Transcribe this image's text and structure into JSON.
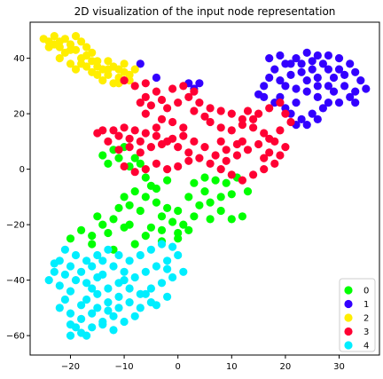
{
  "chart_data": {
    "type": "scatter",
    "title": "2D visualization of the input node representation",
    "xlabel": "",
    "ylabel": "",
    "xlim": [
      -27.5,
      37.5
    ],
    "ylim": [
      -67,
      53
    ],
    "x_ticks": [
      -20,
      -10,
      0,
      10,
      20,
      30
    ],
    "y_ticks": [
      -60,
      -40,
      -20,
      0,
      20,
      40
    ],
    "x_tick_labels": [
      "−20",
      "−10",
      "0",
      "10",
      "20",
      "30"
    ],
    "y_tick_labels": [
      "−60",
      "−40",
      "−20",
      "0",
      "20",
      "40"
    ],
    "grid": false,
    "legend_position": "bottom-right",
    "series": [
      {
        "name": "0",
        "color": "#00ff00",
        "points": [
          [
            -14,
            5
          ],
          [
            -12,
            7
          ],
          [
            -10,
            8
          ],
          [
            -11,
            4
          ],
          [
            -13,
            2
          ],
          [
            -8,
            4
          ],
          [
            -9,
            1
          ],
          [
            -7,
            2
          ],
          [
            -6,
            -3
          ],
          [
            -8,
            -8
          ],
          [
            -10,
            -10
          ],
          [
            -6,
            -10
          ],
          [
            -4,
            -12
          ],
          [
            -2,
            -14
          ],
          [
            0,
            -15
          ],
          [
            -9,
            -13
          ],
          [
            -7,
            -15
          ],
          [
            -3,
            -17
          ],
          [
            -1,
            -19
          ],
          [
            1,
            -20
          ],
          [
            2,
            -22
          ],
          [
            0,
            -23
          ],
          [
            -3,
            -22
          ],
          [
            -5,
            -21
          ],
          [
            -9,
            -20
          ],
          [
            -12,
            -18
          ],
          [
            -15,
            -17
          ],
          [
            -18,
            -22
          ],
          [
            -20,
            -25
          ],
          [
            -16,
            -24
          ],
          [
            -13,
            -23
          ],
          [
            -10,
            -21
          ],
          [
            -6,
            -24
          ],
          [
            -3,
            -26
          ],
          [
            0,
            -25
          ],
          [
            3,
            -17
          ],
          [
            4,
            -13
          ],
          [
            6,
            -12
          ],
          [
            8,
            -10
          ],
          [
            10,
            -9
          ],
          [
            9,
            -5
          ],
          [
            7,
            -4
          ],
          [
            5,
            -3
          ],
          [
            5,
            -8
          ],
          [
            8,
            -15
          ],
          [
            10,
            -18
          ],
          [
            12,
            -17
          ],
          [
            13,
            -8
          ],
          [
            11,
            -3
          ],
          [
            -11,
            -14
          ],
          [
            -4,
            -7
          ],
          [
            -2,
            -4
          ],
          [
            2,
            -10
          ],
          [
            -16,
            -27
          ],
          [
            -12,
            -29
          ],
          [
            -8,
            -27
          ],
          [
            -14,
            -20
          ],
          [
            6,
            -18
          ],
          [
            3,
            -5
          ],
          [
            -5,
            -6
          ]
        ]
      },
      {
        "name": "1",
        "color": "#3300ff",
        "points": [
          [
            20,
            38
          ],
          [
            22,
            40
          ],
          [
            24,
            42
          ],
          [
            26,
            41
          ],
          [
            27,
            38
          ],
          [
            28,
            36
          ],
          [
            25,
            36
          ],
          [
            23,
            35
          ],
          [
            21,
            34
          ],
          [
            19,
            32
          ],
          [
            20,
            30
          ],
          [
            22,
            29
          ],
          [
            24,
            28
          ],
          [
            26,
            26
          ],
          [
            28,
            24
          ],
          [
            27,
            22
          ],
          [
            25,
            20
          ],
          [
            23,
            18
          ],
          [
            21,
            20
          ],
          [
            22,
            24
          ],
          [
            24,
            32
          ],
          [
            26,
            33
          ],
          [
            30,
            40
          ],
          [
            32,
            38
          ],
          [
            33,
            35
          ],
          [
            34,
            32
          ],
          [
            35,
            29
          ],
          [
            33,
            28
          ],
          [
            31,
            30
          ],
          [
            29,
            33
          ],
          [
            30,
            36
          ],
          [
            18,
            36
          ],
          [
            17,
            33
          ],
          [
            16,
            30
          ],
          [
            15,
            27
          ],
          [
            19,
            26
          ],
          [
            20,
            22
          ],
          [
            22,
            16
          ],
          [
            24,
            16
          ],
          [
            26,
            18
          ],
          [
            28,
            30
          ],
          [
            29,
            28
          ],
          [
            32,
            26
          ],
          [
            33,
            24
          ],
          [
            30,
            24
          ],
          [
            17,
            40
          ],
          [
            19,
            41
          ],
          [
            21,
            38
          ],
          [
            23,
            38
          ],
          [
            25,
            39
          ],
          [
            28,
            41
          ],
          [
            31,
            34
          ],
          [
            -7,
            38
          ],
          [
            -4,
            33
          ],
          [
            2,
            31
          ],
          [
            3,
            29
          ],
          [
            4,
            31
          ],
          [
            16,
            26
          ],
          [
            18,
            24
          ],
          [
            26,
            30
          ]
        ]
      },
      {
        "name": "2",
        "color": "#ffee00",
        "points": [
          [
            -25,
            47
          ],
          [
            -23,
            48
          ],
          [
            -21,
            47
          ],
          [
            -19,
            48
          ],
          [
            -20,
            45
          ],
          [
            -22,
            44
          ],
          [
            -24,
            46
          ],
          [
            -18,
            46
          ],
          [
            -19,
            43
          ],
          [
            -21,
            42
          ],
          [
            -22,
            40
          ],
          [
            -20,
            38
          ],
          [
            -18,
            40
          ],
          [
            -16,
            42
          ],
          [
            -15,
            39
          ],
          [
            -17,
            37
          ],
          [
            -19,
            36
          ],
          [
            -16,
            35
          ],
          [
            -14,
            36
          ],
          [
            -12,
            37
          ],
          [
            -13,
            34
          ],
          [
            -11,
            33
          ],
          [
            -10,
            35
          ],
          [
            -9,
            32
          ],
          [
            -12,
            31
          ],
          [
            -14,
            32
          ],
          [
            -15,
            34
          ],
          [
            -10,
            38
          ],
          [
            -8,
            36
          ],
          [
            -17,
            44
          ],
          [
            -23,
            45
          ],
          [
            -20,
            43
          ],
          [
            -17,
            41
          ],
          [
            -13,
            39
          ],
          [
            -11,
            36
          ],
          [
            -22,
            46
          ],
          [
            -24,
            44
          ],
          [
            -18,
            38
          ],
          [
            -15,
            37
          ],
          [
            -13,
            36
          ],
          [
            -11,
            31
          ],
          [
            -9,
            34
          ],
          [
            -16,
            39
          ]
        ]
      },
      {
        "name": "3",
        "color": "#ff0033",
        "points": [
          [
            -10,
            32
          ],
          [
            -8,
            30
          ],
          [
            -6,
            31
          ],
          [
            -4,
            28
          ],
          [
            -3,
            25
          ],
          [
            -5,
            23
          ],
          [
            -7,
            24
          ],
          [
            -6,
            20
          ],
          [
            -3,
            18
          ],
          [
            -1,
            17
          ],
          [
            1,
            15
          ],
          [
            -2,
            22
          ],
          [
            0,
            24
          ],
          [
            2,
            26
          ],
          [
            3,
            28
          ],
          [
            1,
            30
          ],
          [
            -1,
            29
          ],
          [
            3,
            21
          ],
          [
            5,
            19
          ],
          [
            6,
            17
          ],
          [
            8,
            15
          ],
          [
            10,
            14
          ],
          [
            12,
            16
          ],
          [
            14,
            18
          ],
          [
            15,
            20
          ],
          [
            17,
            22
          ],
          [
            19,
            24
          ],
          [
            20,
            20
          ],
          [
            21,
            17
          ],
          [
            19,
            14
          ],
          [
            17,
            11
          ],
          [
            15,
            9
          ],
          [
            13,
            7
          ],
          [
            11,
            5
          ],
          [
            9,
            3
          ],
          [
            7,
            5
          ],
          [
            5,
            8
          ],
          [
            3,
            10
          ],
          [
            1,
            12
          ],
          [
            -1,
            11
          ],
          [
            -3,
            9
          ],
          [
            -5,
            8
          ],
          [
            -7,
            10
          ],
          [
            -9,
            11
          ],
          [
            -11,
            12
          ],
          [
            -13,
            10
          ],
          [
            -12,
            14
          ],
          [
            -10,
            15
          ],
          [
            -8,
            14
          ],
          [
            -6,
            13
          ],
          [
            -4,
            12
          ],
          [
            -2,
            10
          ],
          [
            0,
            8
          ],
          [
            2,
            6
          ],
          [
            4,
            4
          ],
          [
            6,
            2
          ],
          [
            8,
            0
          ],
          [
            10,
            -2
          ],
          [
            12,
            -4
          ],
          [
            14,
            -2
          ],
          [
            16,
            0
          ],
          [
            18,
            2
          ],
          [
            19,
            5
          ],
          [
            20,
            8
          ],
          [
            18,
            10
          ],
          [
            16,
            13
          ],
          [
            14,
            15
          ],
          [
            12,
            18
          ],
          [
            10,
            20
          ],
          [
            8,
            21
          ],
          [
            6,
            22
          ],
          [
            4,
            24
          ],
          [
            8,
            10
          ],
          [
            9,
            7
          ],
          [
            11,
            9
          ],
          [
            -14,
            14
          ],
          [
            -4,
            2
          ],
          [
            -2,
            0
          ],
          [
            0,
            1
          ],
          [
            2,
            3
          ],
          [
            -6,
            0
          ],
          [
            -8,
            -1
          ],
          [
            -10,
            1
          ],
          [
            -7,
            6
          ],
          [
            -9,
            8
          ],
          [
            17,
            6
          ],
          [
            -15,
            13
          ],
          [
            -11,
            7
          ],
          [
            12,
            10
          ],
          [
            16,
            4
          ],
          [
            -6,
            26
          ],
          [
            -4,
            15
          ],
          [
            13,
            21
          ]
        ]
      },
      {
        "name": "4",
        "color": "#00eeff",
        "points": [
          [
            -22,
            -33
          ],
          [
            -20,
            -35
          ],
          [
            -18,
            -37
          ],
          [
            -16,
            -35
          ],
          [
            -14,
            -33
          ],
          [
            -12,
            -35
          ],
          [
            -10,
            -37
          ],
          [
            -8,
            -39
          ],
          [
            -6,
            -37
          ],
          [
            -4,
            -35
          ],
          [
            -2,
            -33
          ],
          [
            0,
            -31
          ],
          [
            -1,
            -28
          ],
          [
            -3,
            -27
          ],
          [
            -5,
            -29
          ],
          [
            -7,
            -31
          ],
          [
            -9,
            -33
          ],
          [
            -11,
            -31
          ],
          [
            -13,
            -29
          ],
          [
            -15,
            -31
          ],
          [
            -17,
            -33
          ],
          [
            -19,
            -31
          ],
          [
            -21,
            -29
          ],
          [
            -23,
            -37
          ],
          [
            -24,
            -40
          ],
          [
            -22,
            -42
          ],
          [
            -20,
            -44
          ],
          [
            -21,
            -47
          ],
          [
            -22,
            -50
          ],
          [
            -20,
            -52
          ],
          [
            -18,
            -54
          ],
          [
            -19,
            -57
          ],
          [
            -20,
            -60
          ],
          [
            -18,
            -59
          ],
          [
            -16,
            -57
          ],
          [
            -14,
            -55
          ],
          [
            -12,
            -53
          ],
          [
            -10,
            -55
          ],
          [
            -12,
            -58
          ],
          [
            -14,
            -56
          ],
          [
            -15,
            -50
          ],
          [
            -13,
            -48
          ],
          [
            -11,
            -46
          ],
          [
            -9,
            -48
          ],
          [
            -7,
            -50
          ],
          [
            -5,
            -48
          ],
          [
            -7,
            -45
          ],
          [
            -9,
            -43
          ],
          [
            -11,
            -41
          ],
          [
            -13,
            -43
          ],
          [
            -15,
            -45
          ],
          [
            -17,
            -47
          ],
          [
            -17,
            -41
          ],
          [
            -15,
            -39
          ],
          [
            -5,
            -43
          ],
          [
            -3,
            -41
          ],
          [
            -1,
            -39
          ],
          [
            1,
            -37
          ],
          [
            -2,
            -46
          ],
          [
            -4,
            -49
          ],
          [
            -18,
            -49
          ],
          [
            -16,
            -52
          ],
          [
            -13,
            -51
          ],
          [
            -11,
            -50
          ],
          [
            -19,
            -40
          ],
          [
            -23,
            -34
          ],
          [
            -21,
            -38
          ],
          [
            -8,
            -53
          ],
          [
            -6,
            -45
          ],
          [
            -16,
            -43
          ],
          [
            -14,
            -38
          ],
          [
            -10,
            -40
          ],
          [
            -2,
            -36
          ],
          [
            -20,
            -56
          ],
          [
            -17,
            -60
          ]
        ]
      }
    ]
  }
}
